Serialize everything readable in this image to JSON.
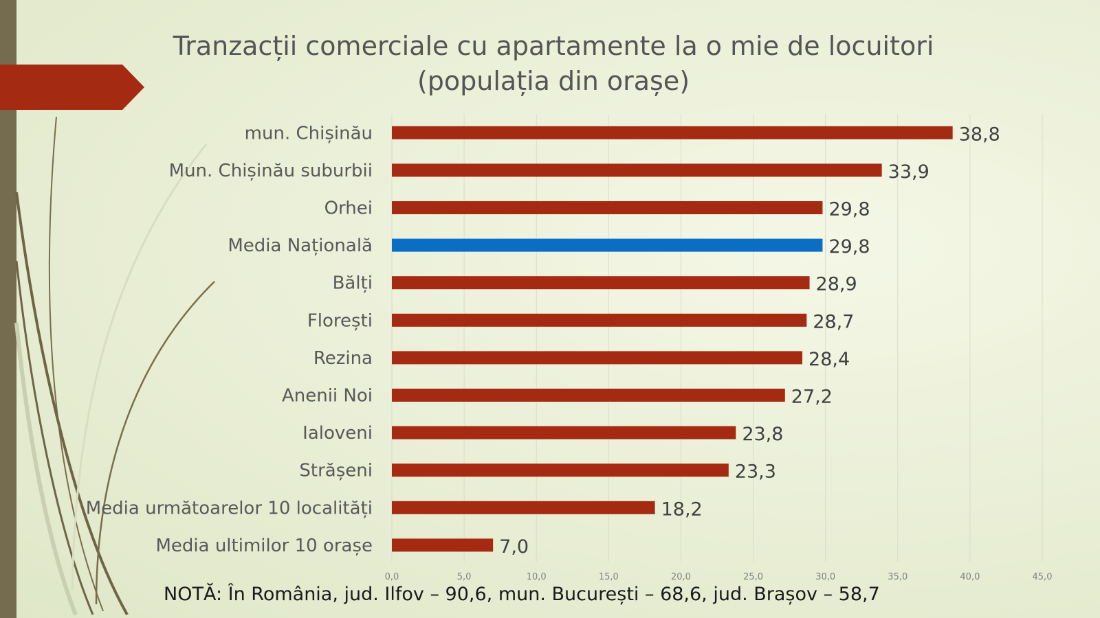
{
  "slide": {
    "title_line1": "Tranzacții comerciale cu apartamente la o mie de locuitori",
    "title_line2": "(populația din orașe)",
    "note": "NOTĂ: În România, jud. Ilfov – 90,6, mun. București – 68,6, jud. Brașov – 58,7"
  },
  "colors": {
    "bar": "#a52a12",
    "highlight": "#0a6fc4",
    "accent_bar": "#756b4f",
    "ribbon": "#a52a12"
  },
  "chart_data": {
    "type": "bar",
    "orientation": "horizontal",
    "categories": [
      "mun. Chișinău",
      "Mun. Chișinău suburbii",
      "Orhei",
      "Media Națională",
      "Bălți",
      "Florești",
      "Rezina",
      "Anenii Noi",
      "Ialoveni",
      "Strășeni",
      "Media următoarelor 10 localități",
      "Media ultimilor 10 orașe"
    ],
    "values": [
      38.8,
      33.9,
      29.8,
      29.8,
      28.9,
      28.7,
      28.4,
      27.2,
      23.8,
      23.3,
      18.2,
      7.0
    ],
    "value_labels": [
      "38,8",
      "33,9",
      "29,8",
      "29,8",
      "28,9",
      "28,7",
      "28,4",
      "27,2",
      "23,8",
      "23,3",
      "18,2",
      "7,0"
    ],
    "highlight_index": 3,
    "xlim": [
      0,
      45
    ],
    "x_ticks": [
      0,
      5,
      10,
      15,
      20,
      25,
      30,
      35,
      40,
      45
    ],
    "x_tick_labels": [
      "0,0",
      "5,0",
      "10,0",
      "15,0",
      "20,0",
      "25,0",
      "30,0",
      "35,0",
      "40,0",
      "45,0"
    ],
    "grid": true
  }
}
